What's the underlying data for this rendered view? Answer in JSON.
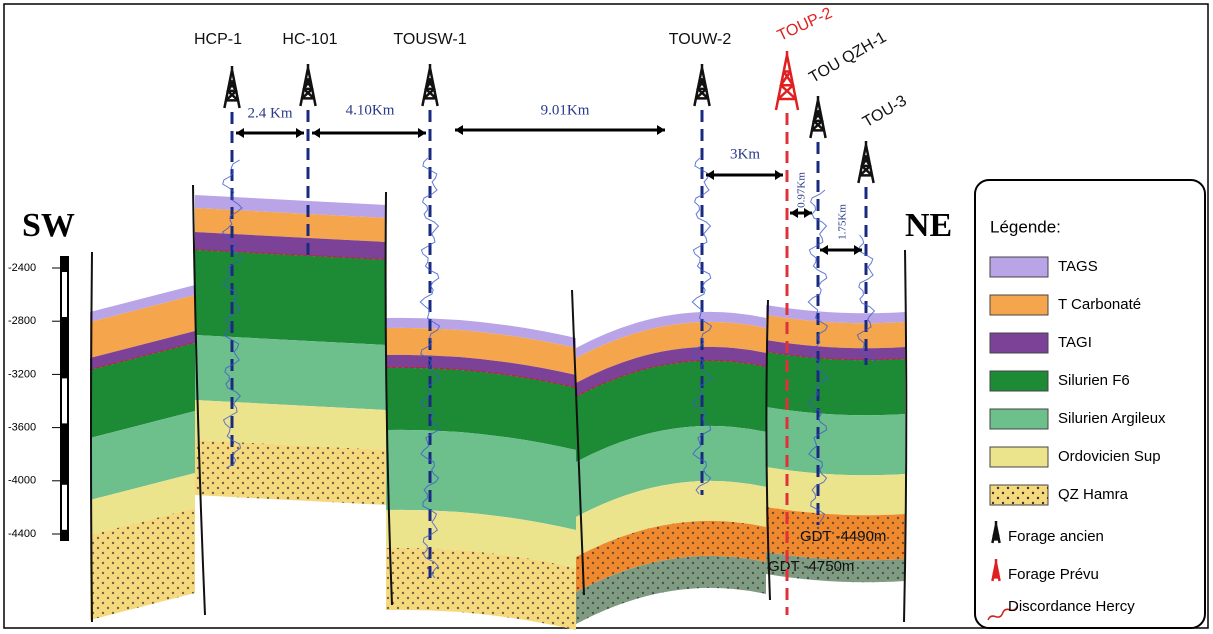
{
  "wells": [
    "HCP-1",
    "HC-101",
    "TOUSW-1",
    "TOUW-2",
    "TOUP-2",
    "TOU QZH-1",
    "TOU-3"
  ],
  "distances": [
    "2.4 Km",
    "4.10Km",
    "9.01Km",
    "3Km",
    "0.97Km",
    "1.75Km"
  ],
  "directions": {
    "left": "SW",
    "right": "NE"
  },
  "depth_scale": [
    -2400,
    -2800,
    -3200,
    -3600,
    -4000,
    -4400
  ],
  "gdt_labels": [
    "GDT -4750m",
    "GDT -4490m"
  ],
  "legend": {
    "title": "Légende:",
    "layers": [
      {
        "name": "TAGS",
        "color": "#b9a4e8"
      },
      {
        "name": "T Carbonaté",
        "color": "#f5a64c"
      },
      {
        "name": "TAGI",
        "color": "#7b4297"
      },
      {
        "name": "Silurien F6",
        "color": "#1d8a36"
      },
      {
        "name": "Silurien Argileux",
        "color": "#6dbf8c"
      },
      {
        "name": "Ordovicien Sup",
        "color": "#ece48c"
      },
      {
        "name": "QZ Hamra",
        "color": "#f6d97c"
      }
    ],
    "symbols": [
      "Forage ancien",
      "Forage Prévu",
      "Discordance Hercy"
    ]
  }
}
